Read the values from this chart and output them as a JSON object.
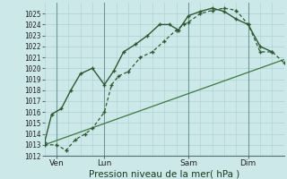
{
  "bg_color": "#cde8e8",
  "grid_color": "#b0d4d4",
  "vline_color": "#6a9a9a",
  "line_dark": "#2d5a2d",
  "line_mid": "#3a7a3a",
  "ylim": [
    1012,
    1026
  ],
  "xlim": [
    0,
    10
  ],
  "yticks": [
    1012,
    1013,
    1014,
    1015,
    1016,
    1017,
    1018,
    1019,
    1020,
    1021,
    1022,
    1023,
    1024,
    1025
  ],
  "xtick_labels": [
    "Ven",
    "Lun",
    "Sam",
    "Dim"
  ],
  "xtick_pos": [
    0.5,
    2.5,
    6.0,
    8.5
  ],
  "vline_pos": [
    0.5,
    2.5,
    6.0,
    8.5
  ],
  "line1_x": [
    0.0,
    0.5,
    0.9,
    1.3,
    1.7,
    2.0,
    2.5,
    2.8,
    3.1,
    3.5,
    4.0,
    4.5,
    5.0,
    5.5,
    5.8,
    6.0,
    6.5,
    7.0,
    7.5,
    8.0,
    8.5,
    9.0,
    9.5,
    10.0
  ],
  "line1_y": [
    1013.0,
    1013.0,
    1012.5,
    1013.5,
    1014.0,
    1014.5,
    1016.0,
    1018.5,
    1019.3,
    1019.7,
    1021.0,
    1021.5,
    1022.5,
    1023.5,
    1024.0,
    1024.2,
    1025.0,
    1025.3,
    1025.5,
    1025.3,
    1024.0,
    1021.5,
    1021.5,
    1020.5
  ],
  "line2_x": [
    0.0,
    0.3,
    0.7,
    1.1,
    1.5,
    2.0,
    2.5,
    2.9,
    3.3,
    3.8,
    4.3,
    4.8,
    5.2,
    5.6,
    6.0,
    6.5,
    7.0,
    7.5,
    8.0,
    8.5,
    9.0,
    9.5
  ],
  "line2_y": [
    1013.2,
    1015.8,
    1016.3,
    1018.0,
    1019.5,
    1020.0,
    1018.5,
    1019.8,
    1021.5,
    1022.2,
    1023.0,
    1024.0,
    1024.0,
    1023.5,
    1024.8,
    1025.2,
    1025.5,
    1025.2,
    1024.5,
    1024.0,
    1022.0,
    1021.5
  ],
  "line3_x": [
    0.0,
    10.0
  ],
  "line3_y": [
    1013.0,
    1020.8
  ],
  "xlabel": "Pression niveau de la mer( hPa )",
  "xlabel_fontsize": 7.5,
  "ytick_fontsize": 5.5,
  "xtick_fontsize": 6.5
}
